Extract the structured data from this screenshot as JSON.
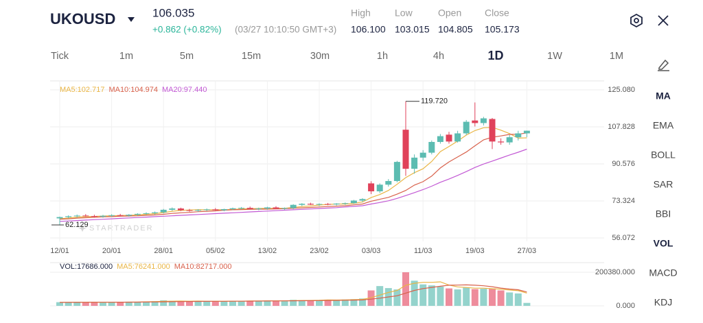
{
  "header": {
    "symbol": "UKOUSD",
    "price": "106.035",
    "change": "+0.862 (+0.82%)",
    "time": "(03/27 10:10:50 GMT+3)",
    "stats": [
      {
        "label": "High",
        "value": "106.100"
      },
      {
        "label": "Low",
        "value": "103.015"
      },
      {
        "label": "Open",
        "value": "104.805"
      },
      {
        "label": "Close",
        "value": "105.173"
      }
    ]
  },
  "tabs": [
    "Tick",
    "1m",
    "5m",
    "15m",
    "30m",
    "1h",
    "4h",
    "1D",
    "1W",
    "1M"
  ],
  "active_tab": 7,
  "indicators": [
    "MA",
    "EMA",
    "BOLL",
    "SAR",
    "BBI",
    "VOL",
    "MACD",
    "KDJ"
  ],
  "active_indicators": [
    0,
    5
  ],
  "watermark": "STARTRADER",
  "chart_data": [
    {
      "type": "candlestick",
      "up_color": "#5cbcb1",
      "down_color": "#e0425a",
      "grid": true,
      "max_label": "119.720",
      "min_label": "62.129",
      "categories": [
        "12/01",
        null,
        null,
        null,
        null,
        null,
        "20/01",
        null,
        null,
        null,
        null,
        null,
        "28/01",
        null,
        null,
        null,
        null,
        null,
        "05/02",
        null,
        null,
        null,
        null,
        null,
        "13/02",
        null,
        null,
        null,
        null,
        null,
        "23/02",
        null,
        null,
        null,
        null,
        null,
        "03/03",
        null,
        null,
        null,
        null,
        null,
        "11/03",
        null,
        null,
        null,
        null,
        null,
        "19/03",
        null,
        null,
        null,
        null,
        null,
        "27/03"
      ],
      "open": [
        65.2,
        65.8,
        66.2,
        66.5,
        66.3,
        66.0,
        66.4,
        66.7,
        66.5,
        66.9,
        67.3,
        67.6,
        68.0,
        69.2,
        69.8,
        69.0,
        68.8,
        69.1,
        69.4,
        69.0,
        69.5,
        69.9,
        70.1,
        69.6,
        69.8,
        70.3,
        69.7,
        70.0,
        71.5,
        72.0,
        71.6,
        71.9,
        71.7,
        72.1,
        72.3,
        73.5,
        81.5,
        77.8,
        80.9,
        82.6,
        106.5,
        88.3,
        93.5,
        95.8,
        100.8,
        104.2,
        101.0,
        104.8,
        110.8,
        109.6,
        111.5,
        101.0,
        100.6,
        103.0,
        104.805
      ],
      "high": [
        66.0,
        66.6,
        67.0,
        67.2,
        66.9,
        66.8,
        67.1,
        67.3,
        67.2,
        67.6,
        68.0,
        68.4,
        69.6,
        70.3,
        70.2,
        69.6,
        69.5,
        69.8,
        70.0,
        69.7,
        70.2,
        70.5,
        70.7,
        70.2,
        70.6,
        70.9,
        70.3,
        71.8,
        72.3,
        72.5,
        72.2,
        72.4,
        72.3,
        72.6,
        73.8,
        74.6,
        82.5,
        81.5,
        83.5,
        92.0,
        119.72,
        95.0,
        97.0,
        101.5,
        104.5,
        105.5,
        106.0,
        111.0,
        119.2,
        112.5,
        112.0,
        102.5,
        104.0,
        106.0,
        106.1
      ],
      "low": [
        62.129,
        65.3,
        65.6,
        65.9,
        65.7,
        65.5,
        65.9,
        66.1,
        66.0,
        66.4,
        66.8,
        67.0,
        67.5,
        68.7,
        68.6,
        68.3,
        68.2,
        68.6,
        68.8,
        68.5,
        69.0,
        69.3,
        69.5,
        69.0,
        69.2,
        69.6,
        69.1,
        69.5,
        70.9,
        71.4,
        71.0,
        71.3,
        71.2,
        71.5,
        72.0,
        72.8,
        76.5,
        77.0,
        80.0,
        82.0,
        85.0,
        86.0,
        92.0,
        95.0,
        100.0,
        100.0,
        100.5,
        104.0,
        108.0,
        108.5,
        97.5,
        99.5,
        99.5,
        101.5,
        103.015
      ],
      "close": [
        65.8,
        66.2,
        66.5,
        66.3,
        66.0,
        66.4,
        66.7,
        66.5,
        66.9,
        67.3,
        67.6,
        68.0,
        69.2,
        69.8,
        69.0,
        68.8,
        69.1,
        69.4,
        69.0,
        69.5,
        69.9,
        70.1,
        69.6,
        69.8,
        70.3,
        69.7,
        70.0,
        71.5,
        72.0,
        71.6,
        71.9,
        71.7,
        72.1,
        72.3,
        73.5,
        74.2,
        77.8,
        80.9,
        82.6,
        91.5,
        88.3,
        93.5,
        95.8,
        100.8,
        103.5,
        101.0,
        104.8,
        110.2,
        109.6,
        111.8,
        101.0,
        100.6,
        103.0,
        104.8,
        106.035
      ],
      "series": [
        {
          "name": "MA5:102.717",
          "color": "#e9b544",
          "values": [
            65.0,
            65.4,
            65.8,
            66.0,
            66.1,
            66.3,
            66.4,
            66.5,
            66.6,
            66.8,
            67.1,
            67.4,
            67.9,
            68.5,
            68.9,
            69.1,
            69.2,
            69.2,
            69.2,
            69.2,
            69.4,
            69.6,
            69.7,
            69.8,
            69.9,
            69.9,
            69.9,
            70.3,
            70.7,
            71.0,
            71.4,
            71.7,
            71.9,
            71.9,
            72.2,
            72.8,
            74.9,
            76.3,
            78.2,
            81.1,
            84.2,
            86.5,
            88.3,
            91.7,
            96.3,
            98.7,
            101.2,
            104.0,
            106.1,
            107.4,
            107.6,
            106.3,
            104.7,
            102.6,
            102.717
          ]
        },
        {
          "name": "MA10:104.974",
          "color": "#d8614b",
          "values": [
            64.8,
            65.0,
            65.3,
            65.5,
            65.7,
            65.9,
            66.0,
            66.2,
            66.3,
            66.4,
            66.6,
            66.8,
            67.1,
            67.5,
            67.8,
            68.0,
            68.3,
            68.5,
            68.7,
            69.0,
            69.2,
            69.3,
            69.4,
            69.5,
            69.5,
            69.6,
            69.7,
            69.9,
            70.1,
            70.3,
            70.5,
            70.7,
            70.9,
            71.1,
            71.5,
            71.9,
            73.2,
            74.1,
            75.0,
            76.5,
            78.2,
            80.7,
            82.3,
            84.9,
            88.7,
            91.5,
            93.8,
            96.1,
            99.0,
            101.8,
            103.0,
            103.6,
            104.3,
            104.4,
            104.974
          ]
        },
        {
          "name": "MA20:97.440",
          "color": "#c258d4",
          "values": [
            63.8,
            64.0,
            64.2,
            64.4,
            64.6,
            64.8,
            65.0,
            65.2,
            65.4,
            65.6,
            65.8,
            66.0,
            66.2,
            66.4,
            66.6,
            66.8,
            67.0,
            67.2,
            67.4,
            67.6,
            67.8,
            68.0,
            68.2,
            68.4,
            68.6,
            68.8,
            69.0,
            69.2,
            69.4,
            69.6,
            69.8,
            70.0,
            70.2,
            70.5,
            70.8,
            71.1,
            71.9,
            72.6,
            73.4,
            74.5,
            75.8,
            77.2,
            78.6,
            80.2,
            82.0,
            83.5,
            85.2,
            87.0,
            88.9,
            90.5,
            91.9,
            93.3,
            94.7,
            96.0,
            97.44
          ]
        }
      ],
      "ylim": [
        56.072,
        125.08
      ],
      "yticks": [
        {
          "value": 56.072,
          "label": "56.072"
        },
        {
          "value": 73.324,
          "label": "73.324"
        },
        {
          "value": 90.576,
          "label": "90.576"
        },
        {
          "value": 107.828,
          "label": "107.828"
        },
        {
          "value": 125.08,
          "label": "125.080"
        }
      ]
    },
    {
      "type": "bar",
      "label": "VOL:17686.000",
      "up_color": "#94d3cc",
      "down_color": "#ee8c9c",
      "values": [
        22000,
        20000,
        24000,
        21000,
        23000,
        19000,
        22000,
        24000,
        25000,
        23000,
        26000,
        28000,
        33000,
        30000,
        27000,
        25000,
        28000,
        26000,
        29000,
        27000,
        30000,
        28000,
        31000,
        29000,
        32000,
        30000,
        28000,
        36000,
        34000,
        33000,
        35000,
        37000,
        34000,
        38000,
        40000,
        44000,
        92000,
        118000,
        106000,
        98000,
        200380,
        150000,
        128000,
        122000,
        115000,
        104000,
        98000,
        108000,
        100000,
        102000,
        104000,
        92000,
        80000,
        74000,
        17686
      ],
      "series": [
        {
          "name": "MA5:76241.000",
          "color": "#e9b544",
          "values": [
            21000,
            21000,
            21500,
            21500,
            22000,
            21400,
            21800,
            21800,
            22600,
            22600,
            24000,
            25200,
            27000,
            28000,
            28800,
            27800,
            28600,
            27200,
            27000,
            27000,
            28000,
            28000,
            29000,
            29000,
            30000,
            30000,
            30000,
            31000,
            32000,
            32200,
            33200,
            35000,
            34600,
            35400,
            36800,
            38600,
            48600,
            64400,
            80000,
            91600,
            122800,
            134400,
            140400,
            140400,
            143000,
            124000,
            113400,
            109400,
            105400,
            105400,
            102400,
            99200,
            94400,
            90400,
            76241
          ]
        },
        {
          "name": "MA10:82717.000",
          "color": "#d8614b",
          "values": [
            20500,
            20800,
            21000,
            21200,
            21500,
            21600,
            21800,
            22000,
            22200,
            22400,
            23000,
            23500,
            24200,
            25000,
            25600,
            26000,
            26500,
            27000,
            27400,
            27600,
            27800,
            28000,
            28400,
            28600,
            29000,
            29400,
            29800,
            30200,
            30600,
            31000,
            31500,
            32200,
            32800,
            33500,
            34200,
            35200,
            40000,
            46000,
            53000,
            60000,
            76000,
            92000,
            103000,
            110000,
            117000,
            123000,
            124000,
            125000,
            123000,
            120000,
            114000,
            106000,
            100000,
            96000,
            82717
          ]
        }
      ],
      "ylim": [
        0,
        200380
      ],
      "yticks": [
        {
          "value": 0,
          "label": "0.000"
        },
        {
          "value": 200380,
          "label": "200380.000"
        }
      ]
    }
  ]
}
